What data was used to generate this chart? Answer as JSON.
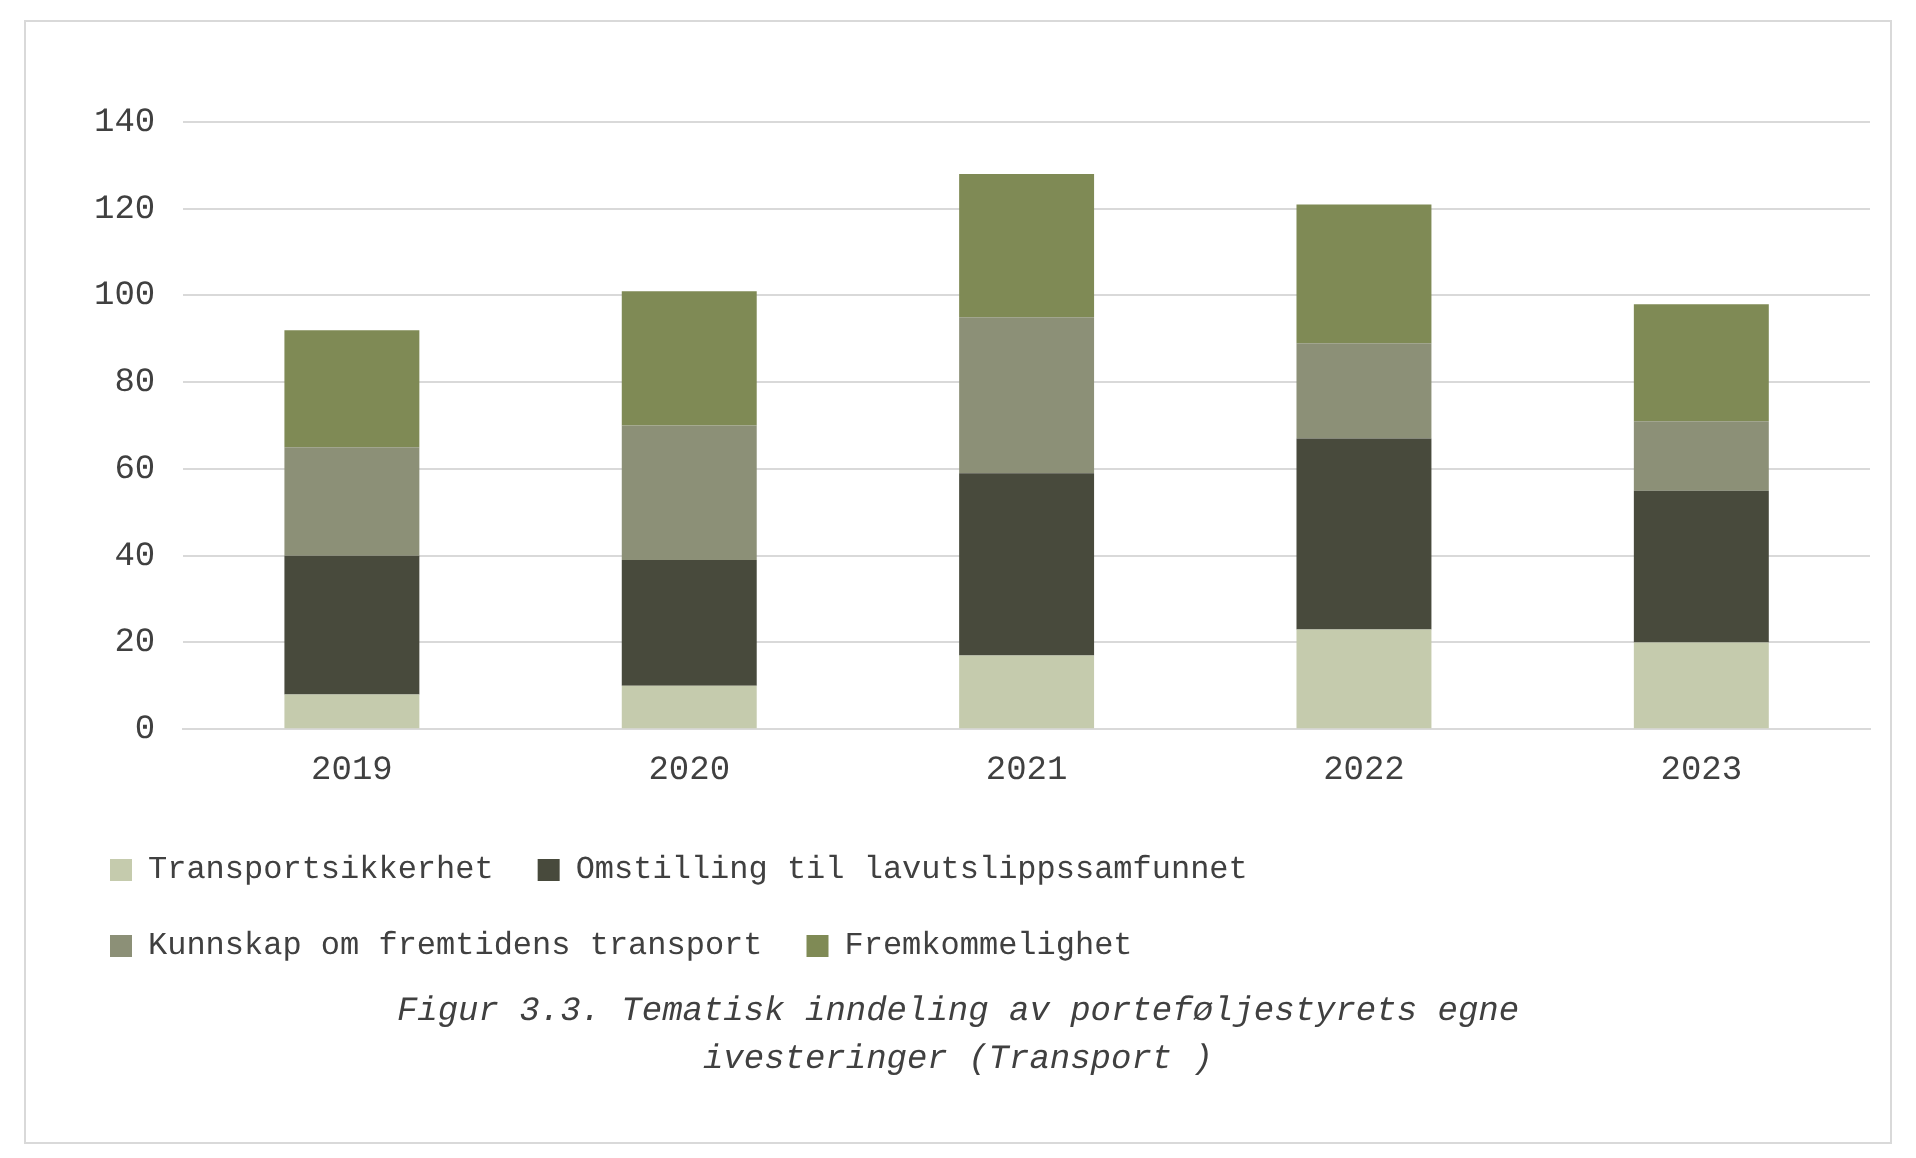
{
  "chart_data": {
    "type": "bar",
    "stacked": true,
    "categories": [
      "2019",
      "2020",
      "2021",
      "2022",
      "2023"
    ],
    "series": [
      {
        "name": "Transportsikkerhet",
        "color": "#c5cbad",
        "values": [
          8,
          10,
          17,
          23,
          20
        ]
      },
      {
        "name": "Omstilling til lavutslippssamfunnet",
        "color": "#484a3c",
        "values": [
          32,
          29,
          42,
          44,
          35
        ]
      },
      {
        "name": "Kunnskap om fremtidens transport",
        "color": "#8c9077",
        "values": [
          25,
          31,
          36,
          22,
          16
        ]
      },
      {
        "name": "Fremkommelighet",
        "color": "#7f8a55",
        "values": [
          27,
          31,
          33,
          32,
          27
        ]
      }
    ],
    "ylim": [
      0,
      140
    ],
    "yticks": [
      0,
      20,
      40,
      60,
      80,
      100,
      120,
      140
    ],
    "grid": "y",
    "legend": "bottom",
    "annotations": [
      "Figur 3.3. Tematisk inndeling av porteføljestyrets egne ivesteringer (Transport )"
    ]
  }
}
